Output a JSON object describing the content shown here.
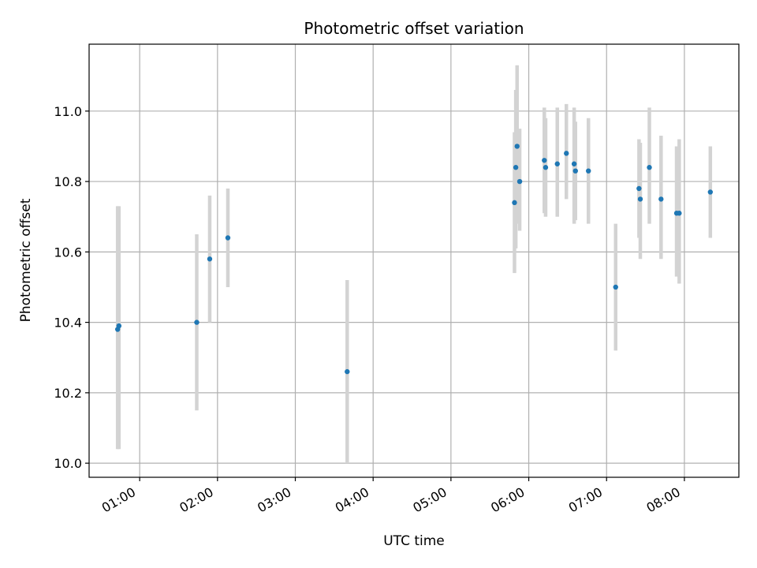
{
  "chart_data": {
    "type": "scatter",
    "title": "Photometric offset variation",
    "xlabel": "UTC time",
    "ylabel": "Photometric offset",
    "x_unit": "time of day (UTC, HH:MM)",
    "xlim": [
      "00:21",
      "08:42"
    ],
    "ylim": [
      9.96,
      11.19
    ],
    "grid": true,
    "x_ticks": [
      "01:00",
      "02:00",
      "03:00",
      "04:00",
      "05:00",
      "06:00",
      "07:00",
      "08:00"
    ],
    "y_ticks": [
      "10.0",
      "10.2",
      "10.4",
      "10.6",
      "10.8",
      "11.0"
    ],
    "colors": {
      "point": "#1f77b4",
      "error_bar": "#d3d3d3",
      "grid": "#b0b0b0"
    },
    "points": [
      {
        "x": "00:43",
        "y": 10.38,
        "ylow": 10.04,
        "yhigh": 10.73
      },
      {
        "x": "00:44",
        "y": 10.39,
        "ylow": 10.04,
        "yhigh": 10.73
      },
      {
        "x": "01:44",
        "y": 10.4,
        "ylow": 10.15,
        "yhigh": 10.65
      },
      {
        "x": "01:54",
        "y": 10.58,
        "ylow": 10.4,
        "yhigh": 10.76
      },
      {
        "x": "02:08",
        "y": 10.64,
        "ylow": 10.5,
        "yhigh": 10.78
      },
      {
        "x": "03:40",
        "y": 10.26,
        "ylow": 10.0,
        "yhigh": 10.52
      },
      {
        "x": "05:49",
        "y": 10.74,
        "ylow": 10.54,
        "yhigh": 10.94
      },
      {
        "x": "05:50",
        "y": 10.84,
        "ylow": 10.61,
        "yhigh": 11.06
      },
      {
        "x": "05:51",
        "y": 10.9,
        "ylow": 10.68,
        "yhigh": 11.13
      },
      {
        "x": "05:53",
        "y": 10.8,
        "ylow": 10.66,
        "yhigh": 10.95
      },
      {
        "x": "06:12",
        "y": 10.86,
        "ylow": 10.71,
        "yhigh": 11.01
      },
      {
        "x": "06:13",
        "y": 10.84,
        "ylow": 10.7,
        "yhigh": 10.98
      },
      {
        "x": "06:22",
        "y": 10.85,
        "ylow": 10.7,
        "yhigh": 11.01
      },
      {
        "x": "06:29",
        "y": 10.88,
        "ylow": 10.75,
        "yhigh": 11.02
      },
      {
        "x": "06:35",
        "y": 10.85,
        "ylow": 10.68,
        "yhigh": 11.01
      },
      {
        "x": "06:36",
        "y": 10.83,
        "ylow": 10.69,
        "yhigh": 10.97
      },
      {
        "x": "06:46",
        "y": 10.83,
        "ylow": 10.68,
        "yhigh": 10.98
      },
      {
        "x": "07:07",
        "y": 10.5,
        "ylow": 10.32,
        "yhigh": 10.68
      },
      {
        "x": "07:25",
        "y": 10.78,
        "ylow": 10.64,
        "yhigh": 10.92
      },
      {
        "x": "07:26",
        "y": 10.75,
        "ylow": 10.58,
        "yhigh": 10.91
      },
      {
        "x": "07:33",
        "y": 10.84,
        "ylow": 10.68,
        "yhigh": 11.01
      },
      {
        "x": "07:42",
        "y": 10.75,
        "ylow": 10.58,
        "yhigh": 10.93
      },
      {
        "x": "07:54",
        "y": 10.71,
        "ylow": 10.53,
        "yhigh": 10.9
      },
      {
        "x": "07:56",
        "y": 10.71,
        "ylow": 10.51,
        "yhigh": 10.92
      },
      {
        "x": "08:20",
        "y": 10.77,
        "ylow": 10.64,
        "yhigh": 10.9
      }
    ]
  }
}
